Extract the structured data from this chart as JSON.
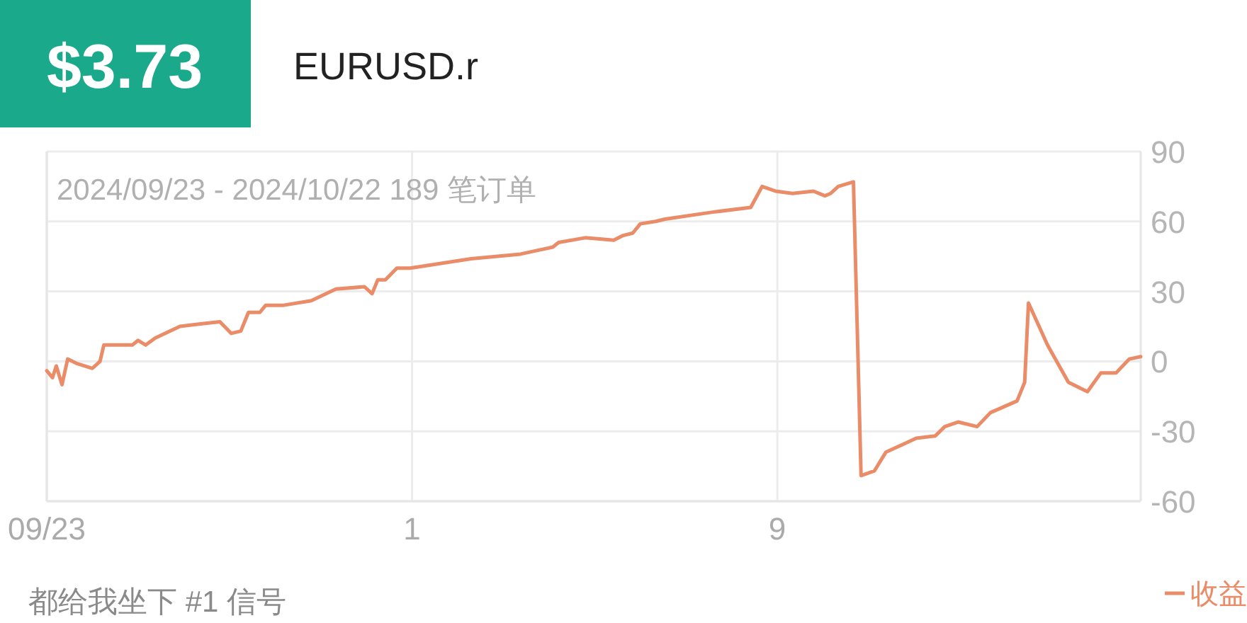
{
  "chart_data": {
    "type": "line",
    "title": "$3.73",
    "subtitle": "EURUSD.r",
    "annotations": [
      "2024/09/23 - 2024/10/22 189 笔订单",
      "都给我坐下 #1 信号"
    ],
    "xlim": [
      "2024-09-23",
      "2024-10-16T23:00"
    ],
    "xticks": [
      {
        "value": "2024-09-23",
        "label": "09/23"
      },
      {
        "value": "2024-10-01",
        "label": "1"
      },
      {
        "value": "2024-10-09",
        "label": "9"
      }
    ],
    "ylim": [
      -60,
      90
    ],
    "yticks": [
      -60,
      -30,
      0,
      30,
      60,
      90
    ],
    "grid": true,
    "legend": "bottom right",
    "marker": "none",
    "line_style": "solid",
    "series": [
      {
        "name": "收益",
        "color": "#ea8c68",
        "x": [
          "2024-09-23T00:00",
          "2024-09-23T03:00",
          "2024-09-23T05:00",
          "2024-09-23T08:00",
          "2024-09-23T11:00",
          "2024-09-23T16:00",
          "2024-09-24T00:00",
          "2024-09-24T04:00",
          "2024-09-24T06:00",
          "2024-09-24T18:00",
          "2024-09-24T21:00",
          "2024-09-25T00:00",
          "2024-09-25T04:00",
          "2024-09-25T09:00",
          "2024-09-25T22:00",
          "2024-09-26T08:00",
          "2024-09-26T19:00",
          "2024-09-27T01:00",
          "2024-09-27T06:00",
          "2024-09-27T10:00",
          "2024-09-27T16:00",
          "2024-09-27T19:00",
          "2024-09-28T04:00",
          "2024-09-28T19:00",
          "2024-09-29T08:00",
          "2024-09-29T23:00",
          "2024-09-30T03:00",
          "2024-09-30T06:00",
          "2024-09-30T10:00",
          "2024-09-30T16:00",
          "2024-09-30T23:00",
          "2024-10-02T07:00",
          "2024-10-03T09:00",
          "2024-10-04T02:00",
          "2024-10-04T05:00",
          "2024-10-04T19:00",
          "2024-10-05T10:00",
          "2024-10-05T15:00",
          "2024-10-05T20:00",
          "2024-10-06T00:00",
          "2024-10-06T08:00",
          "2024-10-06T13:00",
          "2024-10-07T14:00",
          "2024-10-08T10:00",
          "2024-10-08T16:00",
          "2024-10-08T23:00",
          "2024-10-09T08:00",
          "2024-10-09T19:00",
          "2024-10-10T01:00",
          "2024-10-10T04:00",
          "2024-10-10T08:00",
          "2024-10-10T16:00",
          "2024-10-10T20:00",
          "2024-10-11T03:00",
          "2024-10-11T09:00",
          "2024-10-12T01:00",
          "2024-10-12T11:00",
          "2024-10-12T16:00",
          "2024-10-12T23:00",
          "2024-10-13T09:00",
          "2024-10-13T16:00",
          "2024-10-14T06:00",
          "2024-10-14T10:00",
          "2024-10-14T12:00",
          "2024-10-14T22:00",
          "2024-10-15T09:00",
          "2024-10-15T19:00",
          "2024-10-16T02:00",
          "2024-10-16T10:00",
          "2024-10-16T17:00",
          "2024-10-16T23:00"
        ],
        "values": [
          -4,
          -7,
          -2,
          -10,
          1,
          -1,
          -3,
          0,
          7,
          7,
          7,
          9,
          7,
          10,
          15,
          16,
          17,
          12,
          13,
          21,
          21,
          24,
          24,
          26,
          31,
          32,
          29,
          35,
          35,
          40,
          40,
          44,
          46,
          49,
          51,
          53,
          52,
          54,
          55,
          59,
          60,
          61,
          64,
          66,
          75,
          73,
          72,
          73,
          71,
          72,
          75,
          77,
          -49,
          -47,
          -39,
          -33,
          -32,
          -28,
          -26,
          -28,
          -22,
          -17,
          -9,
          25,
          7,
          -9,
          -13,
          -5,
          -5,
          1,
          2
        ]
      }
    ]
  }
}
